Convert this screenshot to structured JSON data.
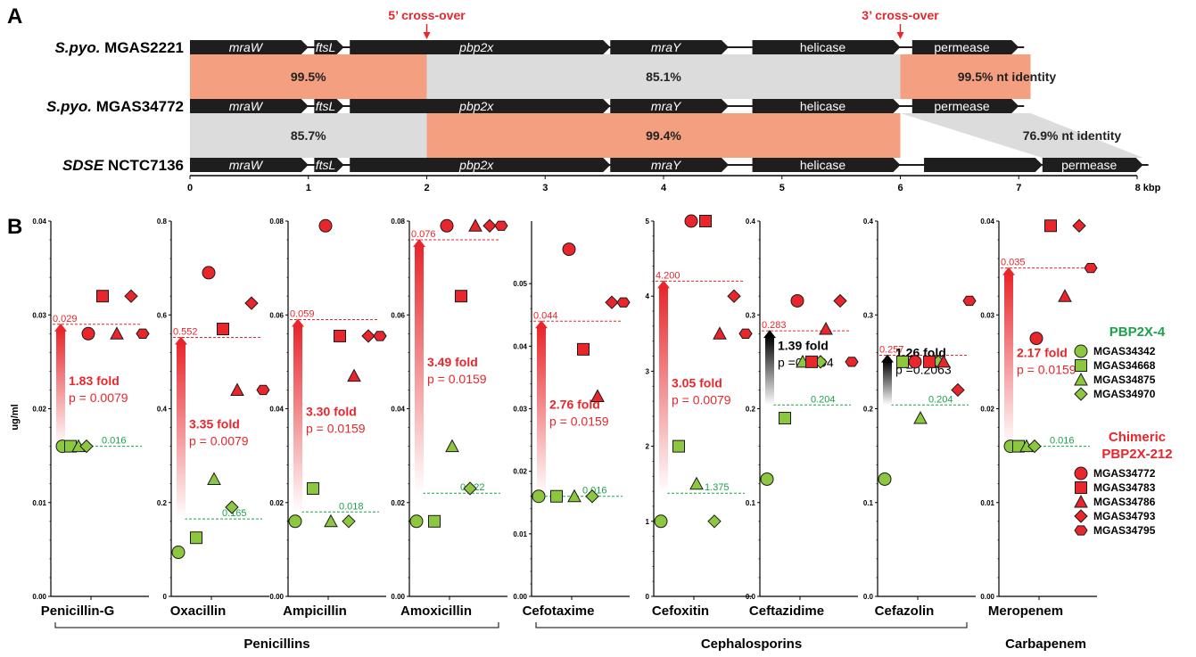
{
  "colors": {
    "red": "#e8262b",
    "red_light": "#ffffff",
    "green": "#8dc63f",
    "green_text": "#1aa34a",
    "salmon": "#f4a080",
    "grey_band": "#dcdcdc",
    "gene": "#1e1e1e",
    "black": "#000000"
  },
  "panel_a": {
    "label": "A",
    "scale_unit": "kbp",
    "scale_ticks": [
      "0",
      "1",
      "2",
      "3",
      "4",
      "5",
      "6",
      "7",
      "8"
    ],
    "crossovers": [
      {
        "label": "5’ cross-over",
        "x_kbp": 2.0
      },
      {
        "label": "3’ cross-over",
        "x_kbp": 6.0
      }
    ],
    "strains": [
      {
        "italic": "S.pyo.",
        "rest": " MGAS2221"
      },
      {
        "italic": "S.pyo.",
        "rest": " MGAS34772"
      },
      {
        "italic": "SDSE",
        "rest": " NCTC7136"
      }
    ],
    "bands": [
      {
        "between": [
          0,
          1
        ],
        "start": 0,
        "end": 2.0,
        "type": "high",
        "label": "99.5%"
      },
      {
        "between": [
          0,
          1
        ],
        "start": 2.0,
        "end": 6.0,
        "type": "low",
        "label": "85.1%"
      },
      {
        "between": [
          0,
          1
        ],
        "start": 6.0,
        "end": 7.1,
        "type": "high",
        "label": "99.5% nt identity"
      },
      {
        "between": [
          1,
          2
        ],
        "start": 0,
        "end": 2.0,
        "type": "low",
        "label": "85.7%"
      },
      {
        "between": [
          1,
          2
        ],
        "start": 2.0,
        "end": 6.0,
        "type": "high",
        "label": "99.4%"
      },
      {
        "between": [
          1,
          2
        ],
        "start": 6.0,
        "end": 7.1,
        "type": "low_shift",
        "label": "76.9% nt identity"
      }
    ],
    "genes_row12": [
      {
        "name": "mraW",
        "start": 0,
        "end": 1.0,
        "italic": true
      },
      {
        "name": "ftsL",
        "start": 1.05,
        "end": 1.3,
        "italic": true
      },
      {
        "name": "pbp2x",
        "start": 1.35,
        "end": 3.55,
        "italic": true
      },
      {
        "name": "mraY",
        "start": 3.55,
        "end": 4.55,
        "italic": true
      },
      {
        "name": "helicase",
        "start": 4.75,
        "end": 6.0,
        "italic": false
      },
      {
        "name": "permease",
        "start": 6.1,
        "end": 7.0,
        "italic": false
      }
    ],
    "genes_row3": [
      {
        "name": "mraW",
        "start": 0,
        "end": 1.0,
        "italic": true
      },
      {
        "name": "ftsL",
        "start": 1.05,
        "end": 1.3,
        "italic": true
      },
      {
        "name": "pbp2x",
        "start": 1.35,
        "end": 3.55,
        "italic": true
      },
      {
        "name": "mraY",
        "start": 3.55,
        "end": 4.55,
        "italic": true
      },
      {
        "name": "helicase",
        "start": 4.75,
        "end": 6.0,
        "italic": false
      },
      {
        "name": "",
        "start": 6.2,
        "end": 7.2,
        "italic": false
      },
      {
        "name": "permease",
        "start": 7.2,
        "end": 8.05,
        "italic": false
      }
    ]
  },
  "panel_b": {
    "label": "B",
    "ylabel": "ug/ml",
    "groups": [
      {
        "label": "Penicillins",
        "from": 0,
        "to": 3
      },
      {
        "label": "Cephalosporins",
        "from": 4,
        "to": 7
      },
      {
        "label": "Carbapenem",
        "from": 8,
        "to": 8
      }
    ],
    "legend": {
      "green_title": "PBP2X-4",
      "green_items": [
        {
          "shape": "circle",
          "label": "MGAS34342"
        },
        {
          "shape": "square",
          "label": "MGAS34668"
        },
        {
          "shape": "triangle",
          "label": "MGAS34875"
        },
        {
          "shape": "diamond",
          "label": "MGAS34970"
        }
      ],
      "red_title_1": "Chimeric",
      "red_title_2": "PBP2X-212",
      "red_items": [
        {
          "shape": "circle",
          "label": "MGAS34772"
        },
        {
          "shape": "square",
          "label": "MGAS34783"
        },
        {
          "shape": "triangle",
          "label": "MGAS34786"
        },
        {
          "shape": "diamond",
          "label": "MGAS34793"
        },
        {
          "shape": "hexagon",
          "label": "MGAS34795"
        }
      ]
    }
  },
  "chart_data": [
    {
      "type": "scatter",
      "title": "Penicillin-G",
      "ylim": [
        0,
        0.04
      ],
      "yticks": [
        "0.00",
        "0.01",
        "0.02",
        "0.03",
        "0.04"
      ],
      "green_values": [
        0.016,
        0.016,
        0.016,
        0.016
      ],
      "red_values": [
        0.028,
        0.032,
        0.028,
        0.032,
        0.028
      ],
      "green_line": 0.016,
      "green_line_label": "0.016",
      "red_line": 0.029,
      "red_line_label": "0.029",
      "fold": "1.83 fold",
      "p": "p = 0.0079",
      "significant": true
    },
    {
      "type": "scatter",
      "title": "Oxacillin",
      "ylim": [
        0,
        0.8
      ],
      "yticks": [
        "0",
        "0.2",
        "0.4",
        "0.6",
        "0.8"
      ],
      "green_values": [
        0.094,
        0.125,
        0.25,
        0.19
      ],
      "red_values": [
        0.69,
        0.57,
        0.44,
        0.625,
        0.44
      ],
      "green_line": 0.165,
      "green_line_label": "0.165",
      "red_line": 0.552,
      "red_line_label": "0.552",
      "fold": "3.35 fold",
      "p": "p = 0.0079",
      "significant": true
    },
    {
      "type": "scatter",
      "title": "Ampicillin",
      "ylim": [
        0,
        0.08
      ],
      "yticks": [
        "0.00",
        "0.02",
        "0.04",
        "0.06",
        "0.08"
      ],
      "green_values": [
        0.016,
        0.023,
        0.016,
        0.016
      ],
      "red_values": [
        0.079,
        0.0555,
        0.047,
        0.0555,
        0.0555
      ],
      "green_line": 0.018,
      "green_line_label": "0.018",
      "red_line": 0.059,
      "red_line_label": "0.059",
      "fold": "3.30 fold",
      "p": "p = 0.0159",
      "significant": true
    },
    {
      "type": "scatter",
      "title": "Amoxicillin",
      "ylim": [
        0,
        0.08
      ],
      "yticks": [
        "0.00",
        "0.02",
        "0.04",
        "0.06",
        "0.08"
      ],
      "green_values": [
        0.016,
        0.016,
        0.032,
        0.023
      ],
      "red_values": [
        0.079,
        0.064,
        0.079,
        0.079,
        0.079
      ],
      "green_line": 0.022,
      "green_line_label": "0.022",
      "red_line": 0.076,
      "red_line_label": "0.076",
      "fold": "3.49 fold",
      "p": "p = 0.0159",
      "significant": true
    },
    {
      "type": "scatter",
      "title": "Cefotaxime",
      "ylim": [
        0,
        0.06
      ],
      "yticks": [
        "0.00",
        "0.01",
        "0.02",
        "0.03",
        "0.04",
        "0.05"
      ],
      "green_values": [
        0.016,
        0.016,
        0.016,
        0.016
      ],
      "red_values": [
        0.0555,
        0.0395,
        0.032,
        0.047,
        0.047
      ],
      "green_line": 0.016,
      "green_line_label": "0.016",
      "red_line": 0.044,
      "red_line_label": "0.044",
      "fold": "2.76 fold",
      "p": "p = 0.0159",
      "significant": true
    },
    {
      "type": "scatter",
      "title": "Cefoxitin",
      "ylim": [
        0,
        5
      ],
      "yticks": [
        "0",
        "1",
        "2",
        "3",
        "4",
        "5"
      ],
      "green_values": [
        1.0,
        2.0,
        1.5,
        1.0
      ],
      "red_values": [
        5.0,
        5.0,
        3.5,
        4.0,
        3.5
      ],
      "green_line": 1.375,
      "green_line_label": "1.375",
      "red_line": 4.2,
      "red_line_label": "4.200",
      "fold": "3.05 fold",
      "p": "p = 0.0079",
      "significant": true
    },
    {
      "type": "scatter",
      "title": "Ceftazidime",
      "ylim": [
        0,
        0.4
      ],
      "yticks": [
        "0.0",
        "0.1",
        "0.2",
        "0.3",
        "0.4"
      ],
      "green_values": [
        0.125,
        0.19,
        0.25,
        0.25
      ],
      "red_values": [
        0.315,
        0.25,
        0.285,
        0.315,
        0.25
      ],
      "green_line": 0.204,
      "green_line_label": "0.204",
      "red_line": 0.283,
      "red_line_label": "0.283",
      "fold": "1.39 fold",
      "p": "p =0.0794",
      "significant": false
    },
    {
      "type": "scatter",
      "title": "Cefazolin",
      "ylim": [
        0,
        0.4
      ],
      "yticks": [
        "0.0",
        "0.1",
        "0.2",
        "0.3",
        "0.4"
      ],
      "green_values": [
        0.125,
        0.25,
        0.19,
        0.25
      ],
      "red_values": [
        0.25,
        0.25,
        0.25,
        0.22,
        0.315
      ],
      "green_line": 0.204,
      "green_line_label": "0.204",
      "red_line": 0.257,
      "red_line_label": "0.257",
      "fold": "1.26 fold",
      "p": "p =0.2063",
      "significant": false
    },
    {
      "type": "scatter",
      "title": "Meropenem",
      "ylim": [
        0,
        0.04
      ],
      "yticks": [
        "0.00",
        "0.01",
        "0.02",
        "0.03",
        "0.04"
      ],
      "green_values": [
        0.016,
        0.016,
        0.016,
        0.016
      ],
      "red_values": [
        0.0275,
        0.0395,
        0.032,
        0.0395,
        0.035
      ],
      "green_line": 0.016,
      "green_line_label": "0.016",
      "red_line": 0.035,
      "red_line_label": "0.035",
      "fold": "2.17 fold",
      "p": "p = 0.0159",
      "significant": true
    }
  ]
}
